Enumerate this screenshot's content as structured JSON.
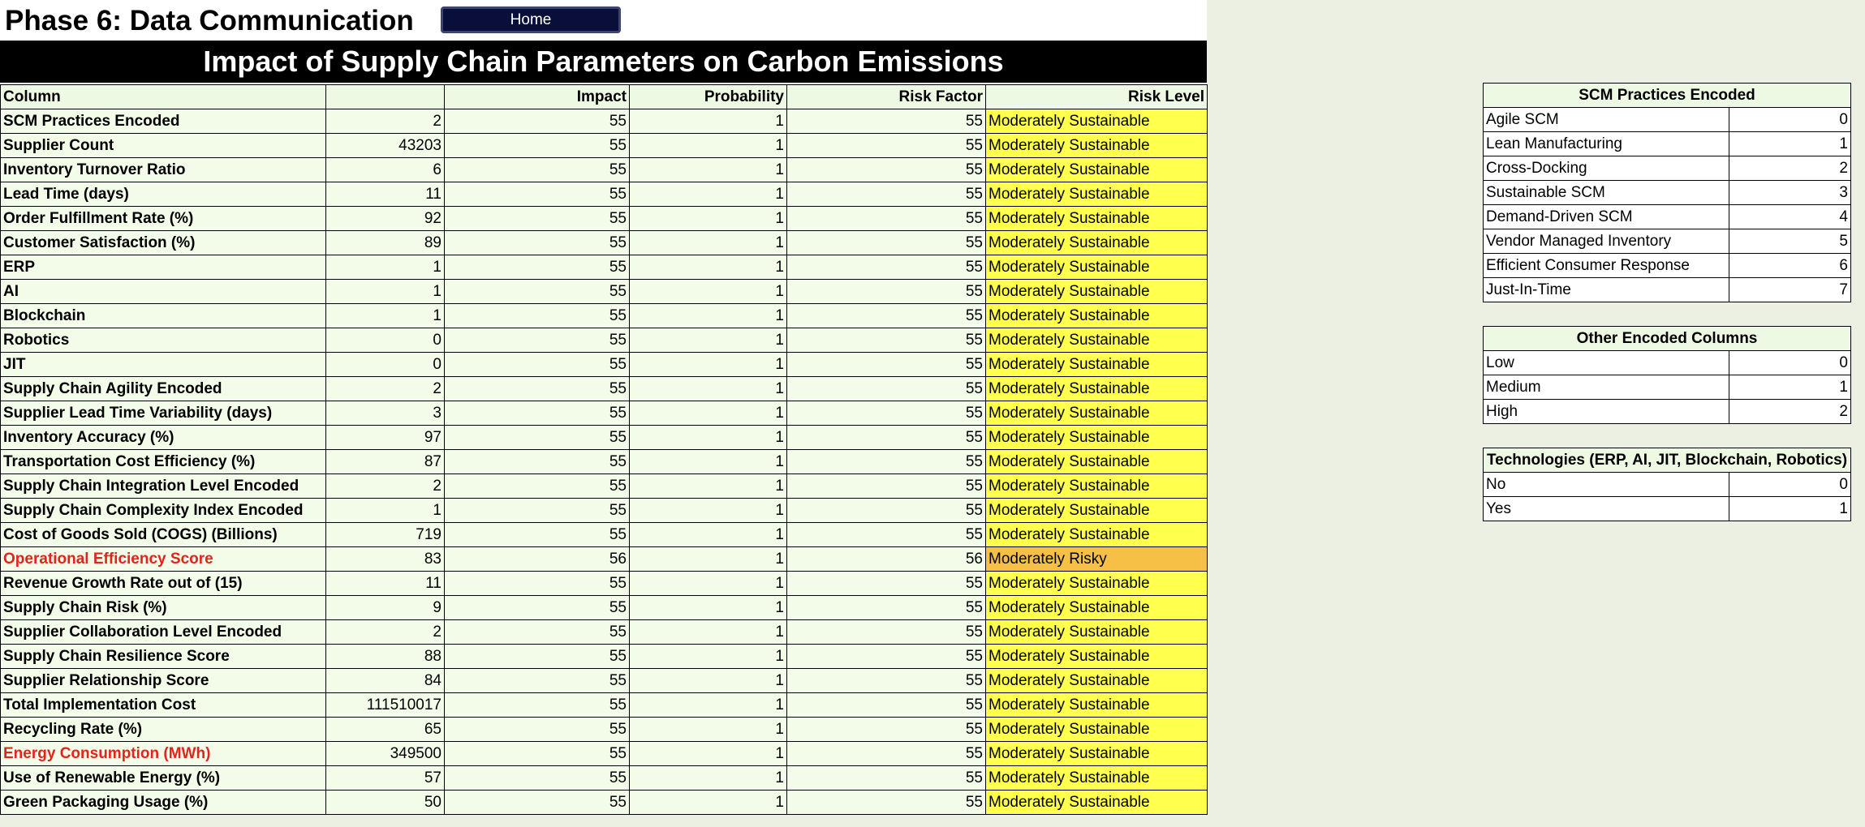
{
  "header": {
    "title": "Phase 6: Data Communication",
    "home_label": "Home"
  },
  "banner": "Impact of Supply Chain Parameters on Carbon Emissions",
  "main_table": {
    "columns": [
      "Column",
      "",
      "Impact",
      "Probability",
      "Risk Factor",
      "Risk Level"
    ],
    "rows": [
      {
        "name": "SCM Practices Encoded",
        "value": "2",
        "impact": "55",
        "probability": "1",
        "risk_factor": "55",
        "risk_level": "Moderately Sustainable"
      },
      {
        "name": "Supplier Count",
        "value": "43203",
        "impact": "55",
        "probability": "1",
        "risk_factor": "55",
        "risk_level": "Moderately Sustainable"
      },
      {
        "name": "Inventory Turnover Ratio",
        "value": "6",
        "impact": "55",
        "probability": "1",
        "risk_factor": "55",
        "risk_level": "Moderately Sustainable"
      },
      {
        "name": "Lead Time (days)",
        "value": "11",
        "impact": "55",
        "probability": "1",
        "risk_factor": "55",
        "risk_level": "Moderately Sustainable"
      },
      {
        "name": "Order Fulfillment Rate (%)",
        "value": "92",
        "impact": "55",
        "probability": "1",
        "risk_factor": "55",
        "risk_level": "Moderately Sustainable"
      },
      {
        "name": "Customer Satisfaction (%)",
        "value": "89",
        "impact": "55",
        "probability": "1",
        "risk_factor": "55",
        "risk_level": "Moderately Sustainable"
      },
      {
        "name": "ERP",
        "value": "1",
        "impact": "55",
        "probability": "1",
        "risk_factor": "55",
        "risk_level": "Moderately Sustainable"
      },
      {
        "name": "AI",
        "value": "1",
        "impact": "55",
        "probability": "1",
        "risk_factor": "55",
        "risk_level": "Moderately Sustainable"
      },
      {
        "name": "Blockchain",
        "value": "1",
        "impact": "55",
        "probability": "1",
        "risk_factor": "55",
        "risk_level": "Moderately Sustainable"
      },
      {
        "name": "Robotics",
        "value": "0",
        "impact": "55",
        "probability": "1",
        "risk_factor": "55",
        "risk_level": "Moderately Sustainable"
      },
      {
        "name": "JIT",
        "value": "0",
        "impact": "55",
        "probability": "1",
        "risk_factor": "55",
        "risk_level": "Moderately Sustainable"
      },
      {
        "name": "Supply Chain Agility Encoded",
        "value": "2",
        "impact": "55",
        "probability": "1",
        "risk_factor": "55",
        "risk_level": "Moderately Sustainable"
      },
      {
        "name": "Supplier Lead Time Variability (days)",
        "value": "3",
        "impact": "55",
        "probability": "1",
        "risk_factor": "55",
        "risk_level": "Moderately Sustainable"
      },
      {
        "name": "Inventory Accuracy (%)",
        "value": "97",
        "impact": "55",
        "probability": "1",
        "risk_factor": "55",
        "risk_level": "Moderately Sustainable"
      },
      {
        "name": "Transportation Cost Efficiency (%)",
        "value": "87",
        "impact": "55",
        "probability": "1",
        "risk_factor": "55",
        "risk_level": "Moderately Sustainable"
      },
      {
        "name": "Supply Chain Integration Level Encoded",
        "value": "2",
        "impact": "55",
        "probability": "1",
        "risk_factor": "55",
        "risk_level": "Moderately Sustainable"
      },
      {
        "name": "Supply Chain Complexity Index Encoded",
        "value": "1",
        "impact": "55",
        "probability": "1",
        "risk_factor": "55",
        "risk_level": "Moderately Sustainable"
      },
      {
        "name": "Cost of Goods Sold (COGS) (Billions)",
        "value": "719",
        "impact": "55",
        "probability": "1",
        "risk_factor": "55",
        "risk_level": "Moderately Sustainable"
      },
      {
        "name": "Operational Efficiency Score",
        "value": "83",
        "impact": "56",
        "probability": "1",
        "risk_factor": "56",
        "risk_level": "Moderately Risky",
        "highlight": true,
        "risky": true
      },
      {
        "name": "Revenue Growth Rate out of (15)",
        "value": "11",
        "impact": "55",
        "probability": "1",
        "risk_factor": "55",
        "risk_level": "Moderately Sustainable"
      },
      {
        "name": "Supply Chain Risk (%)",
        "value": "9",
        "impact": "55",
        "probability": "1",
        "risk_factor": "55",
        "risk_level": "Moderately Sustainable"
      },
      {
        "name": "Supplier Collaboration Level Encoded",
        "value": "2",
        "impact": "55",
        "probability": "1",
        "risk_factor": "55",
        "risk_level": "Moderately Sustainable"
      },
      {
        "name": "Supply Chain Resilience Score",
        "value": "88",
        "impact": "55",
        "probability": "1",
        "risk_factor": "55",
        "risk_level": "Moderately Sustainable"
      },
      {
        "name": "Supplier Relationship Score",
        "value": "84",
        "impact": "55",
        "probability": "1",
        "risk_factor": "55",
        "risk_level": "Moderately Sustainable"
      },
      {
        "name": "Total Implementation Cost",
        "value": "111510017",
        "impact": "55",
        "probability": "1",
        "risk_factor": "55",
        "risk_level": "Moderately Sustainable"
      },
      {
        "name": "Recycling Rate (%)",
        "value": "65",
        "impact": "55",
        "probability": "1",
        "risk_factor": "55",
        "risk_level": "Moderately Sustainable"
      },
      {
        "name": "Energy Consumption (MWh)",
        "value": "349500",
        "impact": "55",
        "probability": "1",
        "risk_factor": "55",
        "risk_level": "Moderately Sustainable",
        "highlight": true
      },
      {
        "name": "Use of Renewable Energy (%)",
        "value": "57",
        "impact": "55",
        "probability": "1",
        "risk_factor": "55",
        "risk_level": "Moderately Sustainable"
      },
      {
        "name": "Green Packaging Usage (%)",
        "value": "50",
        "impact": "55",
        "probability": "1",
        "risk_factor": "55",
        "risk_level": "Moderately Sustainable"
      }
    ]
  },
  "legends": {
    "scm": {
      "title": "SCM Practices Encoded",
      "rows": [
        {
          "label": "Agile SCM",
          "code": "0"
        },
        {
          "label": "Lean Manufacturing",
          "code": "1"
        },
        {
          "label": "Cross-Docking",
          "code": "2"
        },
        {
          "label": "Sustainable SCM",
          "code": "3"
        },
        {
          "label": "Demand-Driven SCM",
          "code": "4"
        },
        {
          "label": "Vendor Managed Inventory",
          "code": "5"
        },
        {
          "label": "Efficient Consumer Response",
          "code": "6"
        },
        {
          "label": "Just-In-Time",
          "code": "7"
        }
      ]
    },
    "other": {
      "title": "Other Encoded Columns",
      "rows": [
        {
          "label": "Low",
          "code": "0"
        },
        {
          "label": "Medium",
          "code": "1"
        },
        {
          "label": "High",
          "code": "2"
        }
      ]
    },
    "tech": {
      "title": "Technologies (ERP, AI, JIT, Blockchain, Robotics)",
      "rows": [
        {
          "label": "No",
          "code": "0"
        },
        {
          "label": "Yes",
          "code": "1"
        }
      ]
    }
  },
  "colors": {
    "sustainable": "#ffff4d",
    "risky": "#f5c045",
    "highlight_text": "#e2241c",
    "banner_bg": "#000000",
    "home_button_bg": "#0a0f3a",
    "sheet_bg": "#ecf0e2"
  }
}
